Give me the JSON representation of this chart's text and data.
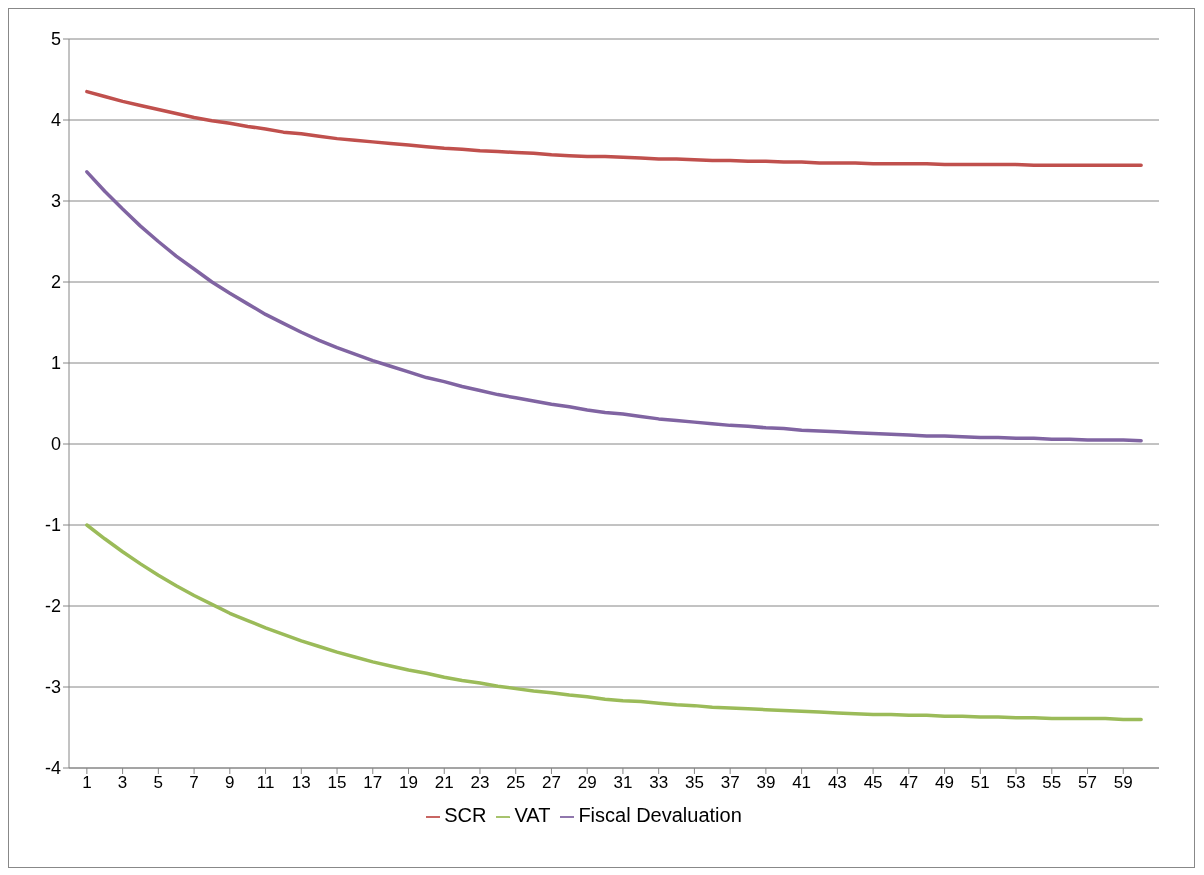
{
  "chart_data": {
    "type": "line",
    "x": [
      1,
      2,
      3,
      4,
      5,
      6,
      7,
      8,
      9,
      10,
      11,
      12,
      13,
      14,
      15,
      16,
      17,
      18,
      19,
      20,
      21,
      22,
      23,
      24,
      25,
      26,
      27,
      28,
      29,
      30,
      31,
      32,
      33,
      34,
      35,
      36,
      37,
      38,
      39,
      40,
      41,
      42,
      43,
      44,
      45,
      46,
      47,
      48,
      49,
      50,
      51,
      52,
      53,
      54,
      55,
      56,
      57,
      58,
      59,
      60
    ],
    "series": [
      {
        "name": "SCR",
        "color": "#c0504d",
        "values": [
          4.35,
          4.29,
          4.23,
          4.18,
          4.13,
          4.08,
          4.03,
          3.99,
          3.96,
          3.92,
          3.89,
          3.85,
          3.83,
          3.8,
          3.77,
          3.75,
          3.73,
          3.71,
          3.69,
          3.67,
          3.65,
          3.64,
          3.62,
          3.61,
          3.6,
          3.59,
          3.57,
          3.56,
          3.55,
          3.55,
          3.54,
          3.53,
          3.52,
          3.52,
          3.51,
          3.5,
          3.5,
          3.49,
          3.49,
          3.48,
          3.48,
          3.47,
          3.47,
          3.47,
          3.46,
          3.46,
          3.46,
          3.46,
          3.45,
          3.45,
          3.45,
          3.45,
          3.45,
          3.44,
          3.44,
          3.44,
          3.44,
          3.44,
          3.44,
          3.44
        ]
      },
      {
        "name": "VAT",
        "color": "#9bbb59",
        "values": [
          -1.0,
          -1.17,
          -1.33,
          -1.48,
          -1.62,
          -1.75,
          -1.87,
          -1.98,
          -2.09,
          -2.18,
          -2.27,
          -2.35,
          -2.43,
          -2.5,
          -2.57,
          -2.63,
          -2.69,
          -2.74,
          -2.79,
          -2.83,
          -2.88,
          -2.92,
          -2.95,
          -2.99,
          -3.02,
          -3.05,
          -3.07,
          -3.1,
          -3.12,
          -3.15,
          -3.17,
          -3.18,
          -3.2,
          -3.22,
          -3.23,
          -3.25,
          -3.26,
          -3.27,
          -3.28,
          -3.29,
          -3.3,
          -3.31,
          -3.32,
          -3.33,
          -3.34,
          -3.34,
          -3.35,
          -3.35,
          -3.36,
          -3.36,
          -3.37,
          -3.37,
          -3.38,
          -3.38,
          -3.39,
          -3.39,
          -3.39,
          -3.39,
          -3.4,
          -3.4
        ]
      },
      {
        "name": "Fiscal Devaluation",
        "color": "#8064a2",
        "values": [
          3.36,
          3.12,
          2.9,
          2.69,
          2.5,
          2.32,
          2.16,
          2.0,
          1.86,
          1.73,
          1.6,
          1.49,
          1.38,
          1.28,
          1.19,
          1.11,
          1.03,
          0.96,
          0.89,
          0.82,
          0.77,
          0.71,
          0.66,
          0.61,
          0.57,
          0.53,
          0.49,
          0.46,
          0.42,
          0.39,
          0.37,
          0.34,
          0.31,
          0.29,
          0.27,
          0.25,
          0.23,
          0.22,
          0.2,
          0.19,
          0.17,
          0.16,
          0.15,
          0.14,
          0.13,
          0.12,
          0.11,
          0.1,
          0.1,
          0.09,
          0.08,
          0.08,
          0.07,
          0.07,
          0.06,
          0.06,
          0.05,
          0.05,
          0.05,
          0.04
        ]
      }
    ],
    "xlim": [
      0,
      61
    ],
    "xticks": [
      1,
      3,
      5,
      7,
      9,
      11,
      13,
      15,
      17,
      19,
      21,
      23,
      25,
      27,
      29,
      31,
      33,
      35,
      37,
      39,
      41,
      43,
      45,
      47,
      49,
      51,
      53,
      55,
      57,
      59
    ],
    "ylim": [
      -4,
      5
    ],
    "yticks": [
      -4,
      -3,
      -2,
      -1,
      0,
      1,
      2,
      3,
      4,
      5
    ],
    "grid": "y",
    "legend": "bottom",
    "marker": "none",
    "line_style": "solid"
  }
}
